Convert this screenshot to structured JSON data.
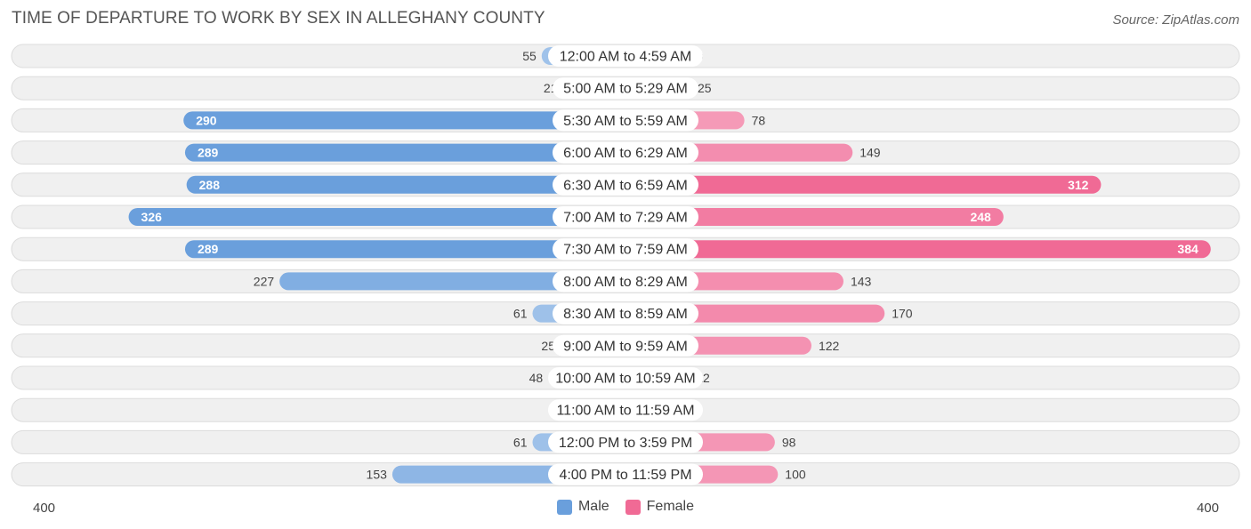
{
  "title": "TIME OF DEPARTURE TO WORK BY SEX IN ALLEGHANY COUNTY",
  "source": "Source: ZipAtlas.com",
  "colors": {
    "male_dark": "#6a9fdc",
    "male_light": "#a9c8ec",
    "female_dark": "#f06a95",
    "female_light": "#f6a7c1",
    "row_bg": "#f0f0f0",
    "row_border": "#dcdcdc"
  },
  "chart_data": {
    "type": "bar",
    "orientation": "horizontal-diverging",
    "categories": [
      "12:00 AM to 4:59 AM",
      "5:00 AM to 5:29 AM",
      "5:30 AM to 5:59 AM",
      "6:00 AM to 6:29 AM",
      "6:30 AM to 6:59 AM",
      "7:00 AM to 7:29 AM",
      "7:30 AM to 7:59 AM",
      "8:00 AM to 8:29 AM",
      "8:30 AM to 8:59 AM",
      "9:00 AM to 9:59 AM",
      "10:00 AM to 10:59 AM",
      "11:00 AM to 11:59 AM",
      "12:00 PM to 3:59 PM",
      "4:00 PM to 11:59 PM"
    ],
    "series": [
      {
        "name": "Male",
        "values": [
          55,
          21,
          290,
          289,
          288,
          326,
          289,
          227,
          61,
          25,
          48,
          0,
          61,
          153
        ]
      },
      {
        "name": "Female",
        "values": [
          10,
          25,
          78,
          149,
          312,
          248,
          384,
          143,
          170,
          122,
          22,
          0,
          98,
          100
        ]
      }
    ],
    "xlim": [
      -400,
      400
    ],
    "axis_labels": {
      "left": "400",
      "right": "400"
    },
    "legend_position": "bottom-center",
    "grid": false
  }
}
